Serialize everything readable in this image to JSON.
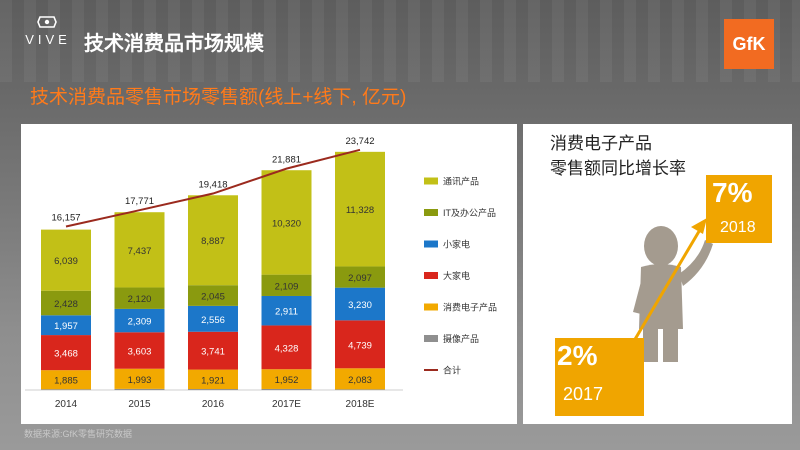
{
  "header": {
    "brand": "VIVE",
    "page_title": "技术消费品市场规模",
    "gfk_logo": "GfK"
  },
  "chart_title": "技术消费品零售市场零售额(线上+线下, 亿元)",
  "source": "数据来源:GfK零售研究数据",
  "chart_data": {
    "type": "bar",
    "stacked": true,
    "categories": [
      "2014",
      "2015",
      "2016",
      "2017E",
      "2018E"
    ],
    "series": [
      {
        "name": "摄像产品",
        "color": "#8f8f8f",
        "values": [
          75,
          110,
          96,
          102,
          63
        ]
      },
      {
        "name": "消费电子产品",
        "color": "#f2a900",
        "values": [
          1885,
          1993,
          1921,
          1952,
          2083
        ]
      },
      {
        "name": "大家电",
        "color": "#d9261c",
        "values": [
          3468,
          3603,
          3741,
          4328,
          4739
        ]
      },
      {
        "name": "小家电",
        "color": "#1c77c9",
        "values": [
          1957,
          2309,
          2556,
          2911,
          3230
        ]
      },
      {
        "name": "IT及办公产品",
        "color": "#8a9a0f",
        "values": [
          2428,
          2120,
          2045,
          2109,
          2097
        ]
      },
      {
        "name": "通讯产品",
        "color": "#c2c017",
        "values": [
          6039,
          7437,
          8887,
          10320,
          11328
        ]
      }
    ],
    "labeled_series": [
      "消费电子产品",
      "大家电",
      "小家电",
      "IT及办公产品",
      "通讯产品"
    ],
    "total": {
      "name": "合计",
      "color": "#9b2a1e",
      "values": [
        16157,
        17771,
        19418,
        21881,
        23742
      ]
    },
    "legend_order": [
      "通讯产品",
      "IT及办公产品",
      "小家电",
      "大家电",
      "消费电子产品",
      "摄像产品",
      "合计"
    ],
    "ylim": [
      0,
      25500
    ],
    "legend_position": "right"
  },
  "right_panel": {
    "title_line1": "消费电子产品",
    "title_line2": "零售额同比增长率",
    "growth": [
      {
        "pct": "2%",
        "year": "2017"
      },
      {
        "pct": "7%",
        "year": "2018"
      }
    ],
    "accent_color": "#f0a500"
  }
}
